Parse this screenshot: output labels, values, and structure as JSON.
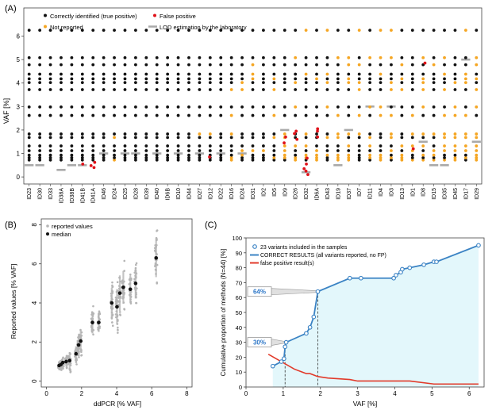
{
  "chart_data": [
    {
      "panel": "(A)",
      "type": "scatter",
      "ylabel": "VAF [%]",
      "ylim": [
        -0.3,
        7.2
      ],
      "yticks": [
        0,
        1,
        2,
        3,
        4,
        5,
        6
      ],
      "categories": [
        "ID23",
        "ID30",
        "ID33",
        "ID38A",
        "ID38B",
        "ID41B",
        "ID41A",
        "ID46",
        "ID24",
        "ID25",
        "ID28",
        "ID39",
        "ID40",
        "ID6B",
        "ID10",
        "ID44",
        "ID27",
        "ID12",
        "ID22",
        "ID16",
        "ID24",
        "ID31",
        "ID2",
        "ID5",
        "ID9",
        "ID26",
        "ID32",
        "ID6A",
        "ID43",
        "ID19",
        "ID37",
        "ID7",
        "ID11",
        "ID4",
        "ID3",
        "ID13",
        "ID1",
        "ID8",
        "ID15",
        "ID35",
        "ID45",
        "ID17",
        "ID29"
      ],
      "variant_levels": [
        0.72,
        0.82,
        0.93,
        1.12,
        1.32,
        1.68,
        1.83,
        2.62,
        2.98,
        3.72,
        4.02,
        4.18,
        4.38,
        4.78,
        5.08,
        6.25
      ],
      "legend": {
        "true_positive": "Correctly identified (true positive)",
        "false_positive": "False positive",
        "not_reported": "Not reported",
        "lod": "LOD estimation by the laboratory"
      },
      "not_reported_from_column": 16,
      "false_positives": [
        {
          "col": 6,
          "y": 0.48
        },
        {
          "col": 6,
          "y": 0.62
        },
        {
          "col": 6,
          "y": 0.4
        },
        {
          "col": 5,
          "y": 0.55
        },
        {
          "col": 17,
          "y": 0.85
        },
        {
          "col": 24,
          "y": 1.45
        },
        {
          "col": 24,
          "y": 1.7
        },
        {
          "col": 25,
          "y": 1.85
        },
        {
          "col": 25,
          "y": 1.6
        },
        {
          "col": 25,
          "y": 1.95
        },
        {
          "col": 26,
          "y": 0.8
        },
        {
          "col": 26,
          "y": 0.55
        },
        {
          "col": 26,
          "y": 0.25
        },
        {
          "col": 26,
          "y": 0.1
        },
        {
          "col": 26,
          "y": 0.35
        },
        {
          "col": 27,
          "y": 1.95
        },
        {
          "col": 27,
          "y": 1.7
        },
        {
          "col": 27,
          "y": 2.05
        },
        {
          "col": 36,
          "y": 1.2
        },
        {
          "col": 37,
          "y": 4.85
        }
      ],
      "lod": [
        {
          "col": 0,
          "y": 0.5
        },
        {
          "col": 1,
          "y": 0.5
        },
        {
          "col": 3,
          "y": 0.3
        },
        {
          "col": 4,
          "y": 0.5
        },
        {
          "col": 5,
          "y": 0.5
        },
        {
          "col": 7,
          "y": 1.0
        },
        {
          "col": 9,
          "y": 1.0
        },
        {
          "col": 10,
          "y": 1.0
        },
        {
          "col": 12,
          "y": 1.0
        },
        {
          "col": 14,
          "y": 1.0
        },
        {
          "col": 16,
          "y": 1.0
        },
        {
          "col": 18,
          "y": 1.0
        },
        {
          "col": 20,
          "y": 1.0
        },
        {
          "col": 24,
          "y": 2.0
        },
        {
          "col": 26,
          "y": 0.2
        },
        {
          "col": 29,
          "y": 0.5
        },
        {
          "col": 30,
          "y": 2.0
        },
        {
          "col": 32,
          "y": 3.0
        },
        {
          "col": 34,
          "y": 3.0
        },
        {
          "col": 37,
          "y": 1.5
        },
        {
          "col": 38,
          "y": 0.5
        },
        {
          "col": 39,
          "y": 0.5
        },
        {
          "col": 41,
          "y": 5.0
        },
        {
          "col": 42,
          "y": 1.5
        }
      ]
    },
    {
      "panel": "(B)",
      "type": "scatter",
      "xlabel": "ddPCR [% VAF]",
      "ylabel": "Reported values [% VAF]",
      "xlim": [
        -0.3,
        8.3
      ],
      "ylim": [
        -0.3,
        8.3
      ],
      "xticks": [
        0,
        2,
        4,
        6,
        8
      ],
      "yticks": [
        0,
        2,
        4,
        6,
        8
      ],
      "legend": {
        "reported": "reported values",
        "median": "median"
      },
      "series": [
        {
          "x": 0.72,
          "median": 0.8,
          "spread": 0.25
        },
        {
          "x": 0.82,
          "median": 0.85,
          "spread": 0.3
        },
        {
          "x": 0.93,
          "median": 0.95,
          "spread": 0.35
        },
        {
          "x": 1.12,
          "median": 1.0,
          "spread": 0.35
        },
        {
          "x": 1.32,
          "median": 1.05,
          "spread": 0.6
        },
        {
          "x": 1.68,
          "median": 1.4,
          "spread": 0.55
        },
        {
          "x": 1.83,
          "median": 1.85,
          "spread": 0.7
        },
        {
          "x": 1.95,
          "median": 2.05,
          "spread": 0.8
        },
        {
          "x": 2.62,
          "median": 3.0,
          "spread": 0.8
        },
        {
          "x": 2.98,
          "median": 3.0,
          "spread": 0.7
        },
        {
          "x": 3.72,
          "median": 4.0,
          "spread": 1.1
        },
        {
          "x": 4.02,
          "median": 3.8,
          "spread": 1.3
        },
        {
          "x": 4.18,
          "median": 4.5,
          "spread": 1.3
        },
        {
          "x": 4.38,
          "median": 4.8,
          "spread": 1.2
        },
        {
          "x": 4.78,
          "median": 4.7,
          "spread": 1.0
        },
        {
          "x": 5.08,
          "median": 5.0,
          "spread": 1.1
        },
        {
          "x": 6.25,
          "median": 6.3,
          "spread": 1.4
        }
      ]
    },
    {
      "panel": "(C)",
      "type": "line",
      "xlabel": "VAF [%]",
      "ylabel": "Cumulative proportion of methods (N=44) [%]",
      "xlim": [
        0,
        6.4
      ],
      "ylim": [
        0,
        100
      ],
      "xticks": [
        0,
        1,
        2,
        3,
        4,
        5,
        6
      ],
      "yticks": [
        0,
        10,
        20,
        30,
        40,
        50,
        60,
        70,
        80,
        90,
        100
      ],
      "legend": {
        "variants": "23 variants included in the samples",
        "correct": "CORRECT RESULTS (all variants reported, no FP)",
        "false_positive": "false positive result(s)"
      },
      "series": [
        {
          "name": "CORRECT RESULTS",
          "x": [
            0.72,
            0.95,
            1.02,
            1.05,
            1.08,
            1.62,
            1.72,
            1.82,
            1.93,
            2.79,
            3.09,
            3.97,
            4.03,
            4.16,
            4.2,
            4.4,
            4.78,
            5.05,
            5.12,
            6.25
          ],
          "y": [
            14,
            17,
            19,
            27,
            30,
            36,
            40,
            47,
            64,
            73,
            73,
            73,
            75,
            77,
            79,
            80,
            82,
            84,
            84,
            95
          ]
        },
        {
          "name": "false positive result(s)",
          "x": [
            0.6,
            0.95,
            1.02,
            1.3,
            1.62,
            1.72,
            1.93,
            2.2,
            2.79,
            3.0,
            3.97,
            4.2,
            4.4,
            5.05,
            5.5,
            6.25
          ],
          "y": [
            22,
            17,
            16,
            12,
            9,
            9,
            7,
            6,
            5,
            4,
            4,
            4,
            4,
            2,
            2,
            2
          ]
        }
      ],
      "annotations": [
        {
          "label": "64%",
          "x": 1.93,
          "y": 64
        },
        {
          "label": "30%",
          "x": 1.05,
          "y": 30
        }
      ]
    }
  ],
  "colors": {
    "true_positive": "#111111",
    "false_positive": "#e0121a",
    "not_reported": "#f5a623",
    "lod": "#a9a9a9",
    "reported": "#b5b5b5",
    "median": "#111111",
    "correct_line": "#3b83c4",
    "fp_line": "#e23a2a",
    "fill": "#e3f7fb",
    "label_text": "#2f78c8"
  }
}
